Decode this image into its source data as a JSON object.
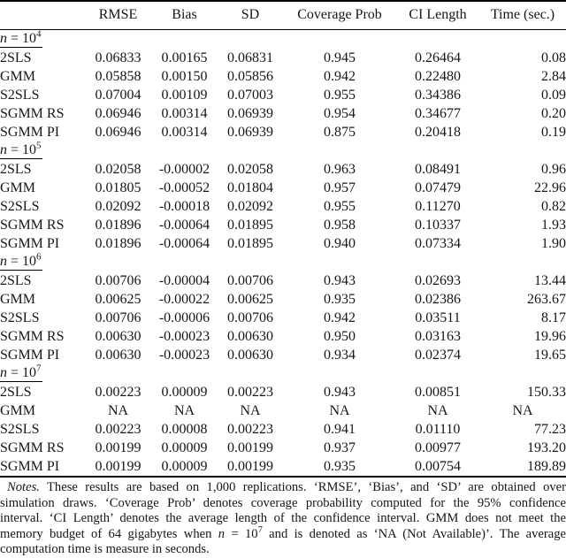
{
  "table": {
    "header": {
      "col0": "",
      "rmse": "RMSE",
      "bias": "Bias",
      "sd": "SD",
      "coverage": "Coverage Prob",
      "ci": "CI Length",
      "time": "Time (sec.)"
    },
    "sections": [
      {
        "n_var": "n",
        "n_eq": " = 10",
        "n_exp": "4",
        "rows": [
          {
            "label": "2SLS",
            "rmse": "0.06833",
            "bias": "0.00165",
            "sd": "0.06831",
            "coverage": "0.945",
            "ci": "0.26464",
            "time": "0.08"
          },
          {
            "label": "GMM",
            "rmse": "0.05858",
            "bias": "0.00150",
            "sd": "0.05856",
            "coverage": "0.942",
            "ci": "0.22480",
            "time": "2.84"
          },
          {
            "label": "S2SLS",
            "rmse": "0.07004",
            "bias": "0.00109",
            "sd": "0.07003",
            "coverage": "0.955",
            "ci": "0.34386",
            "time": "0.09"
          },
          {
            "label": "SGMM RS",
            "rmse": "0.06946",
            "bias": "0.00314",
            "sd": "0.06939",
            "coverage": "0.954",
            "ci": "0.34677",
            "time": "0.20"
          },
          {
            "label": "SGMM PI",
            "rmse": "0.06946",
            "bias": "0.00314",
            "sd": "0.06939",
            "coverage": "0.875",
            "ci": "0.20418",
            "time": "0.19"
          }
        ]
      },
      {
        "n_var": "n",
        "n_eq": " = 10",
        "n_exp": "5",
        "rows": [
          {
            "label": "2SLS",
            "rmse": "0.02058",
            "bias": "-0.00002",
            "sd": "0.02058",
            "coverage": "0.963",
            "ci": "0.08491",
            "time": "0.96"
          },
          {
            "label": "GMM",
            "rmse": "0.01805",
            "bias": "-0.00052",
            "sd": "0.01804",
            "coverage": "0.957",
            "ci": "0.07479",
            "time": "22.96"
          },
          {
            "label": "S2SLS",
            "rmse": "0.02092",
            "bias": "-0.00018",
            "sd": "0.02092",
            "coverage": "0.955",
            "ci": "0.11270",
            "time": "0.82"
          },
          {
            "label": "SGMM RS",
            "rmse": "0.01896",
            "bias": "-0.00064",
            "sd": "0.01895",
            "coverage": "0.958",
            "ci": "0.10337",
            "time": "1.93"
          },
          {
            "label": "SGMM PI",
            "rmse": "0.01896",
            "bias": "-0.00064",
            "sd": "0.01895",
            "coverage": "0.940",
            "ci": "0.07334",
            "time": "1.90"
          }
        ]
      },
      {
        "n_var": "n",
        "n_eq": " = 10",
        "n_exp": "6",
        "rows": [
          {
            "label": "2SLS",
            "rmse": "0.00706",
            "bias": "-0.00004",
            "sd": "0.00706",
            "coverage": "0.943",
            "ci": "0.02693",
            "time": "13.44"
          },
          {
            "label": "GMM",
            "rmse": "0.00625",
            "bias": "-0.00022",
            "sd": "0.00625",
            "coverage": "0.935",
            "ci": "0.02386",
            "time": "263.67"
          },
          {
            "label": "S2SLS",
            "rmse": "0.00706",
            "bias": "-0.00006",
            "sd": "0.00706",
            "coverage": "0.942",
            "ci": "0.03511",
            "time": "8.17"
          },
          {
            "label": "SGMM RS",
            "rmse": "0.00630",
            "bias": "-0.00023",
            "sd": "0.00630",
            "coverage": "0.950",
            "ci": "0.03163",
            "time": "19.96"
          },
          {
            "label": "SGMM PI",
            "rmse": "0.00630",
            "bias": "-0.00023",
            "sd": "0.00630",
            "coverage": "0.934",
            "ci": "0.02374",
            "time": "19.65"
          }
        ]
      },
      {
        "n_var": "n",
        "n_eq": " = 10",
        "n_exp": "7",
        "rows": [
          {
            "label": "2SLS",
            "rmse": "0.00223",
            "bias": "0.00009",
            "sd": "0.00223",
            "coverage": "0.943",
            "ci": "0.00851",
            "time": "150.33"
          },
          {
            "label": "GMM",
            "rmse": "NA",
            "bias": "NA",
            "sd": "NA",
            "coverage": "NA",
            "ci": "NA",
            "time": "NA"
          },
          {
            "label": "S2SLS",
            "rmse": "0.00223",
            "bias": "0.00008",
            "sd": "0.00223",
            "coverage": "0.941",
            "ci": "0.01110",
            "time": "77.23"
          },
          {
            "label": "SGMM RS",
            "rmse": "0.00199",
            "bias": "0.00009",
            "sd": "0.00199",
            "coverage": "0.937",
            "ci": "0.00977",
            "time": "193.20"
          },
          {
            "label": "SGMM PI",
            "rmse": "0.00199",
            "bias": "0.00009",
            "sd": "0.00199",
            "coverage": "0.935",
            "ci": "0.00754",
            "time": "189.89"
          }
        ]
      }
    ]
  },
  "notes": {
    "line1_label": "Notes.",
    "line1_rest": " These results are based on 1,000 replications. ‘RMSE’, ‘Bias’, and ‘SD’ are obtained over",
    "line2": "simulation draws. ‘Coverage Prob’ denotes coverage probability computed for the 95% confidence",
    "line3": "interval. ‘CI Length’ denotes the average length of the confidence interval. GMM does not meet the",
    "line4_pre": "memory budget of 64 gigabytes when ",
    "line4_var": "n",
    "line4_eq": " = 10",
    "line4_exp": "7",
    "line4_post": " and is denoted as ‘NA (Not Available)’. The average",
    "line5": "computation time is measure in seconds."
  }
}
